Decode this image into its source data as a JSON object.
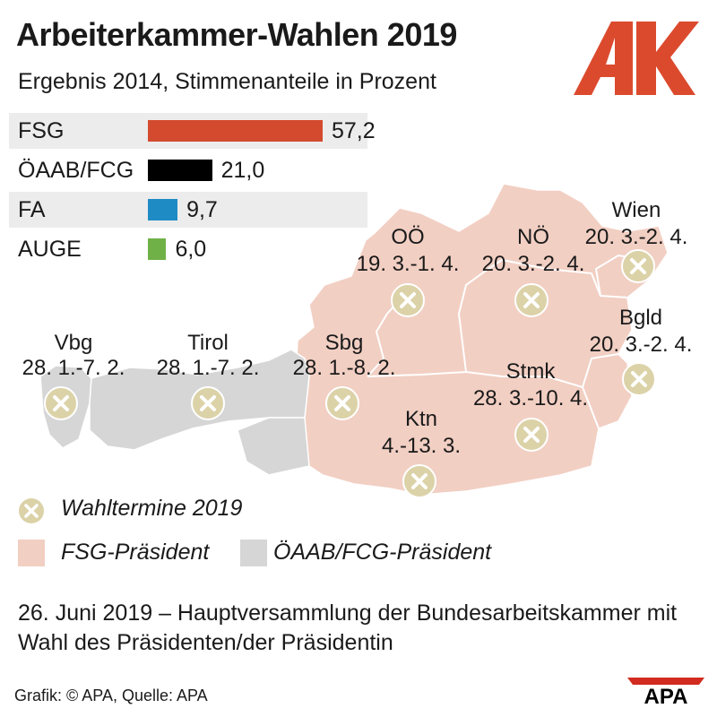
{
  "header": {
    "title": "Arbeiterkammer-Wahlen 2019",
    "subtitle": "Ergebnis 2014, Stimmenanteile in Prozent",
    "logo_text": "AK",
    "logo_color": "#dc4a2e"
  },
  "results": [
    {
      "party": "FSG",
      "value": 57.2,
      "display": "57,2",
      "color": "#d34a2e"
    },
    {
      "party": "ÖAAB/FCG",
      "value": 21.0,
      "display": "21,0",
      "color": "#000000"
    },
    {
      "party": "FA",
      "value": 9.7,
      "display": "9,7",
      "color": "#1f8bc4"
    },
    {
      "party": "AUGE",
      "value": 6.0,
      "display": "6,0",
      "color": "#6fb146"
    }
  ],
  "regions": [
    {
      "name": "Vbg",
      "dates": "28. 1.-7. 2.",
      "president": "ÖAAB/FCG"
    },
    {
      "name": "Tirol",
      "dates": "28. 1.-7. 2.",
      "president": "ÖAAB/FCG"
    },
    {
      "name": "Sbg",
      "dates": "28. 1.-8. 2.",
      "president": "FSG"
    },
    {
      "name": "OÖ",
      "dates": "19. 3.-1. 4.",
      "president": "FSG"
    },
    {
      "name": "NÖ",
      "dates": "20. 3.-2. 4.",
      "president": "FSG"
    },
    {
      "name": "Wien",
      "dates": "20. 3.-2. 4.",
      "president": "FSG"
    },
    {
      "name": "Bgld",
      "dates": "20. 3.-2. 4.",
      "president": "FSG"
    },
    {
      "name": "Stmk",
      "dates": "28. 3.-10. 4.",
      "president": "FSG"
    },
    {
      "name": "Ktn",
      "dates": "4.-13. 3.",
      "president": "FSG"
    }
  ],
  "legend": {
    "election_dates": "Wahltermine 2019",
    "fsg": "FSG-Präsident",
    "oeaab": "ÖAAB/FCG-Präsident"
  },
  "colors": {
    "fsg_region": "#f2cfc3",
    "oeaab_region": "#d6d6d6",
    "marker": "#dcd2a8"
  },
  "footnote": "26. Juni 2019 – Hauptversammlung der Bundesarbeitskammer mit Wahl des Präsidenten/der Präsidentin",
  "credit": "Grafik: © APA, Quelle: APA",
  "apa_logo": "APA"
}
